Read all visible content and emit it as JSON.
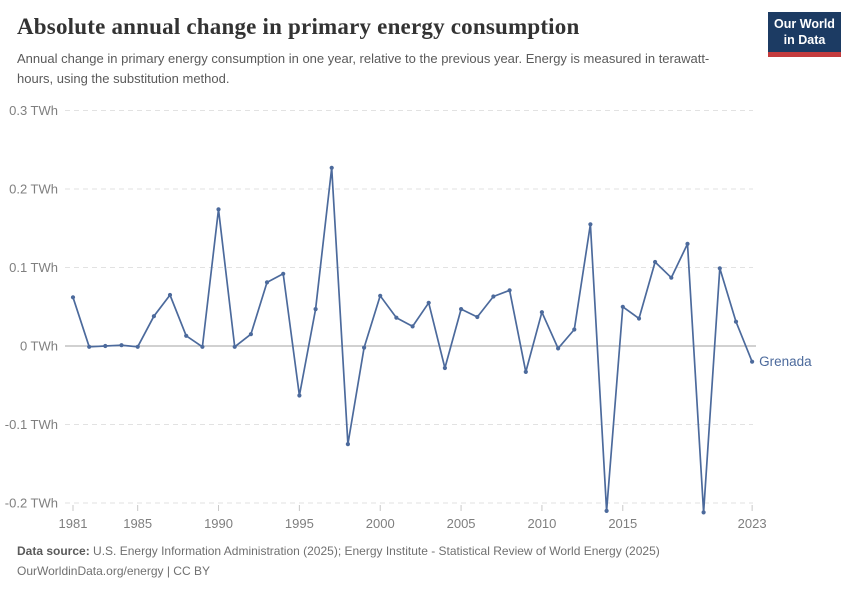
{
  "header": {
    "title": "Absolute annual change in primary energy consumption",
    "subtitle": "Annual change in primary energy consumption in one year, relative to the previous year. Energy is measured in terawatt-hours, using the substitution method.",
    "logo": {
      "line1": "Our World",
      "line2": "in Data",
      "bg_color": "#1c3b63",
      "accent_color": "#c43b3d"
    }
  },
  "chart_data": {
    "type": "line",
    "title": "Absolute annual change in primary energy consumption",
    "unit": "TWh",
    "entity_label": "Grenada",
    "x": [
      1981,
      1982,
      1983,
      1984,
      1985,
      1986,
      1987,
      1988,
      1989,
      1990,
      1991,
      1992,
      1993,
      1994,
      1995,
      1996,
      1997,
      1998,
      1999,
      2000,
      2001,
      2002,
      2003,
      2004,
      2005,
      2006,
      2007,
      2008,
      2009,
      2010,
      2011,
      2012,
      2013,
      2014,
      2015,
      2016,
      2017,
      2018,
      2019,
      2020,
      2021,
      2022,
      2023
    ],
    "series": [
      {
        "name": "Grenada",
        "color": "#4C6A9C",
        "values": [
          0.062,
          -0.001,
          0.0,
          0.001,
          -0.001,
          0.038,
          0.065,
          0.013,
          -0.001,
          0.174,
          -0.001,
          0.015,
          0.081,
          0.092,
          -0.063,
          0.047,
          0.227,
          -0.125,
          -0.002,
          0.064,
          0.036,
          0.025,
          0.055,
          -0.028,
          0.047,
          0.037,
          0.063,
          0.071,
          -0.033,
          0.043,
          -0.003,
          0.021,
          0.155,
          -0.21,
          0.05,
          0.035,
          0.107,
          0.087,
          0.13,
          -0.212,
          0.099,
          0.031,
          -0.02
        ]
      }
    ],
    "xlim": [
      1980.5,
      2023.5
    ],
    "ylim": [
      -0.225,
      0.31
    ],
    "yticks": [
      {
        "v": 0.3,
        "label": "0.3 TWh"
      },
      {
        "v": 0.2,
        "label": "0.2 TWh"
      },
      {
        "v": 0.1,
        "label": "0.1 TWh"
      },
      {
        "v": 0,
        "label": "0 TWh"
      },
      {
        "v": -0.1,
        "label": "-0.1 TWh"
      },
      {
        "v": -0.2,
        "label": "-0.2 TWh"
      }
    ],
    "xticks": [
      {
        "v": 1981,
        "label": "1981"
      },
      {
        "v": 1985,
        "label": "1985"
      },
      {
        "v": 1990,
        "label": "1990"
      },
      {
        "v": 1995,
        "label": "1995"
      },
      {
        "v": 2000,
        "label": "2000"
      },
      {
        "v": 2005,
        "label": "2005"
      },
      {
        "v": 2010,
        "label": "2010"
      },
      {
        "v": 2015,
        "label": "2015"
      },
      {
        "v": 2023,
        "label": "2023"
      }
    ],
    "grid": "horizontal-dashed",
    "zero_line": true,
    "legend": "end-of-line-label",
    "colors": {
      "grid": "#e2e2e2",
      "zero_line": "#a3a3a3",
      "tick_text": "#7f7f7f",
      "tick_mark": "#c8c8c8"
    }
  },
  "footer": {
    "source_label": "Data source:",
    "sources": "U.S. Energy Information Administration (2025); Energy Institute - Statistical Review of World Energy (2025)",
    "license_line": "OurWorldinData.org/energy | CC BY"
  }
}
